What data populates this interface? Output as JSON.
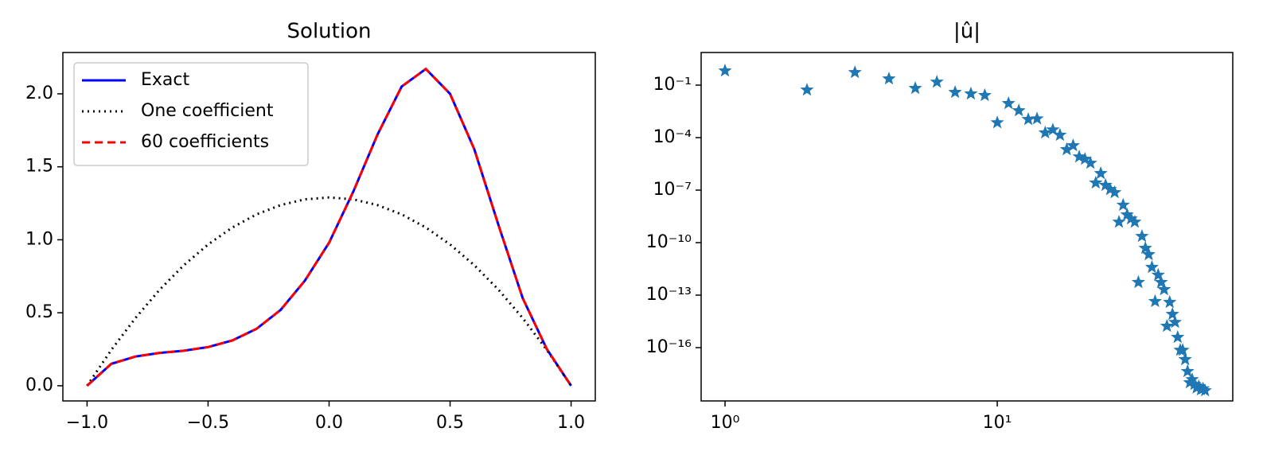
{
  "chart_data": [
    {
      "type": "line",
      "title": "Solution",
      "x": [
        -1.0,
        -0.9,
        -0.8,
        -0.7,
        -0.6,
        -0.5,
        -0.4,
        -0.3,
        -0.2,
        -0.1,
        0.0,
        0.1,
        0.2,
        0.3,
        0.4,
        0.5,
        0.6,
        0.7,
        0.8,
        0.9,
        1.0
      ],
      "series": [
        {
          "name": "Exact",
          "color": "#0000ff",
          "linestyle": "solid",
          "values": [
            0,
            0.15,
            0.2,
            0.225,
            0.24,
            0.265,
            0.31,
            0.39,
            0.52,
            0.72,
            0.98,
            1.33,
            1.72,
            2.05,
            2.17,
            2.0,
            1.62,
            1.1,
            0.6,
            0.25,
            0
          ]
        },
        {
          "name": "One coefficient",
          "color": "#000000",
          "linestyle": "dotted",
          "values": [
            0,
            0.245,
            0.464,
            0.658,
            0.826,
            0.968,
            1.084,
            1.174,
            1.238,
            1.277,
            1.29,
            1.277,
            1.238,
            1.174,
            1.084,
            0.968,
            0.826,
            0.658,
            0.464,
            0.245,
            0
          ]
        },
        {
          "name": "60 coefficients",
          "color": "#ff0000",
          "linestyle": "dashed",
          "values": [
            0,
            0.15,
            0.2,
            0.225,
            0.24,
            0.265,
            0.31,
            0.39,
            0.52,
            0.72,
            0.98,
            1.33,
            1.72,
            2.05,
            2.17,
            2.0,
            1.62,
            1.1,
            0.6,
            0.25,
            0
          ]
        }
      ],
      "xlim": [
        -1.1,
        1.1
      ],
      "ylim": [
        -0.104,
        2.283
      ],
      "xticks": [
        {
          "value": -1,
          "label": "−1.0"
        },
        {
          "value": -0.5,
          "label": "−0.5"
        },
        {
          "value": 0,
          "label": "0.0"
        },
        0.5,
        {
          "value": 1,
          "label": "1.0"
        }
      ],
      "yticks": [
        {
          "value": 0,
          "label": "0.0"
        },
        0.5,
        {
          "value": 1,
          "label": "1.0"
        },
        1.5,
        {
          "value": 2,
          "label": "2.0"
        }
      ],
      "legend": "upper left"
    },
    {
      "type": "scatter",
      "title": "|û|",
      "xscale": "log",
      "yscale": "log",
      "marker": "star",
      "x": [
        1,
        2,
        3,
        4,
        5,
        6,
        7,
        8,
        9,
        10,
        11,
        12,
        13,
        14,
        15,
        16,
        17,
        18,
        19,
        20,
        21,
        22,
        23,
        24,
        25,
        26,
        27,
        28,
        29,
        30,
        31,
        32,
        33,
        34,
        35,
        36,
        37,
        38,
        39,
        40,
        41,
        42,
        43,
        44,
        45,
        46,
        47,
        48,
        49,
        50,
        51,
        52,
        53,
        54,
        55,
        56,
        57,
        58
      ],
      "series": [
        {
          "name": "|û|",
          "color": "#1f77b4",
          "values": [
            0.66,
            0.053,
            0.53,
            0.23,
            0.066,
            0.15,
            0.039,
            0.032,
            0.026,
            0.00072,
            0.009,
            0.0035,
            0.0011,
            0.0012,
            0.00019,
            0.00028,
            0.00014,
            2.1e-05,
            3.5e-05,
            8e-06,
            5.9e-06,
            3.5e-06,
            2.6e-07,
            9e-07,
            1.9e-07,
            1.1e-07,
            7.3e-08,
            1.5e-09,
            1.4e-08,
            3.9e-09,
            2.3e-09,
            1.5e-09,
            5.4e-13,
            2.3e-10,
            4.8e-11,
            2.1e-11,
            3.9e-12,
            4.4e-14,
            1.4e-12,
            5.4e-13,
            2.1e-13,
            1.7e-15,
            3.9e-14,
            8.1e-15,
            2.8e-15,
            3.9e-16,
            7.2e-17,
            7.2e-17,
            2.1e-17,
            4.4e-18,
            1e-18,
            1.5e-18,
            8e-19,
            5e-19,
            6e-19,
            4e-19,
            4.5e-19,
            3.5e-19
          ]
        }
      ],
      "xlim": [
        0.817,
        73.3
      ],
      "ylim": [
        9e-20,
        7.3
      ],
      "xticks": [
        {
          "value": 1,
          "label": "10⁰"
        },
        {
          "value": 10,
          "label": "10¹"
        }
      ],
      "yticks": [
        {
          "value": 0.1,
          "label": "10⁻¹"
        },
        {
          "value": 0.0001,
          "label": "10⁻⁴"
        },
        {
          "value": 1e-07,
          "label": "10⁻⁷"
        },
        {
          "value": 1e-10,
          "label": "10⁻¹⁰"
        },
        {
          "value": 1e-13,
          "label": "10⁻¹³"
        },
        {
          "value": 1e-16,
          "label": "10⁻¹⁶"
        }
      ]
    }
  ]
}
